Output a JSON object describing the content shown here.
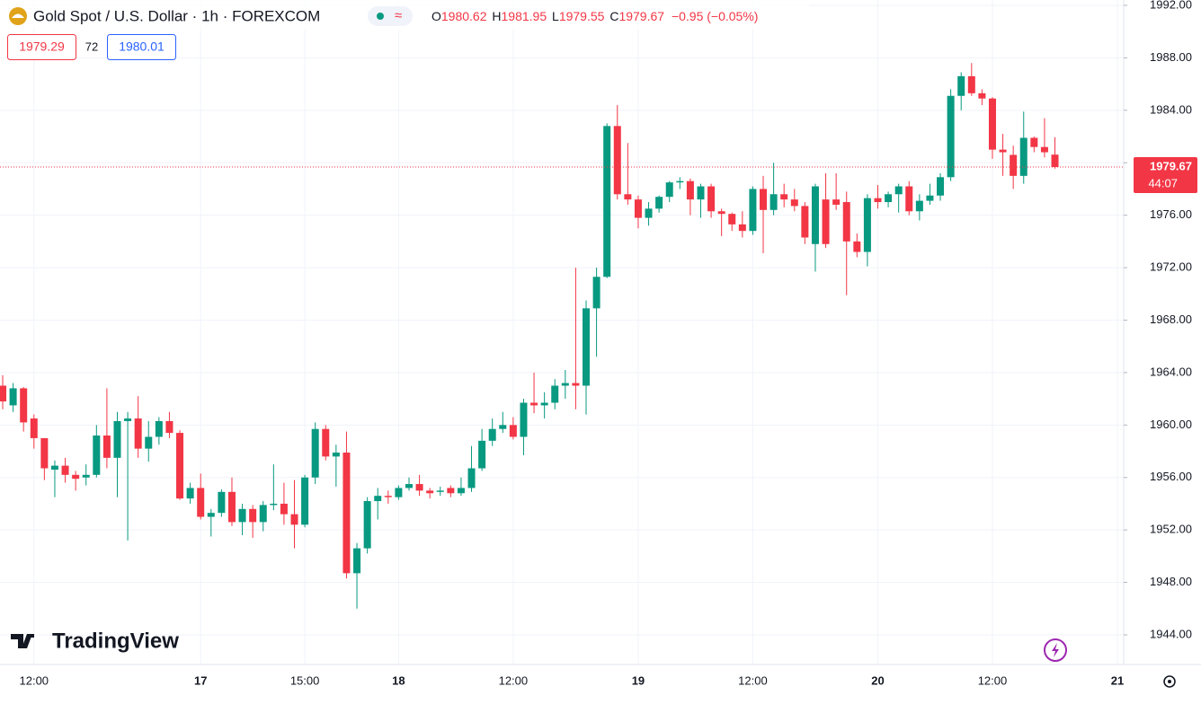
{
  "chart_data": {
    "type": "candlestick",
    "title": "Gold Spot / U.S. Dollar · 1h · FOREXCOM",
    "ohlc_labels": [
      "O",
      "H",
      "L",
      "C"
    ],
    "change": "−0.95 (−0.05%)",
    "bid": 1979.29,
    "spread": 72,
    "ask": 1980.01,
    "countdown": "44:07",
    "brand": "TradingView",
    "up_color": "#089981",
    "down_color": "#f23645",
    "open": [
      1963.0,
      1961.5,
      1962.8,
      1960.5,
      1959.0,
      1956.6,
      1956.9,
      1956.2,
      1956.0,
      1956.2,
      1959.2,
      1957.5,
      1960.3,
      1960.5,
      1958.2,
      1959.1,
      1960.3,
      1959.4,
      1954.4,
      1955.2,
      1953.0,
      1953.3,
      1954.9,
      1952.6,
      1953.6,
      1952.6,
      1953.9,
      1954.0,
      1953.2,
      1952.4,
      1956.0,
      1959.7,
      1957.6,
      1957.9,
      1948.7,
      1950.6,
      1954.2,
      1954.6,
      1954.5,
      1955.2,
      1955.5,
      1955.0,
      1954.9,
      1955.2,
      1954.8,
      1955.2,
      1956.7,
      1958.8,
      1959.7,
      1960.0,
      1959.1,
      1961.7,
      1961.5,
      1961.7,
      1963.0,
      1963.2,
      1963.0,
      1968.9,
      1971.3,
      1982.8,
      1977.6,
      1977.2,
      1975.8,
      1976.5,
      1977.4,
      1978.5,
      1978.6,
      1977.2,
      1978.2,
      1976.3,
      1976.1,
      1975.3,
      1974.8,
      1978.0,
      1976.4,
      1977.6,
      1977.2,
      1976.7,
      1973.8,
      1977.2,
      1977.2,
      1977.0,
      1974.0,
      1973.2,
      1977.3,
      1977.0,
      1977.6,
      1978.2,
      1976.3,
      1977.1,
      1977.5,
      1978.9,
      1985.1,
      1986.6,
      1985.3,
      1984.9,
      1981.0,
      1980.6,
      1979.0,
      1981.9,
      1981.2,
      1980.62
    ],
    "high": [
      1963.8,
      1963.2,
      1962.9,
      1960.8,
      1959.0,
      1957.3,
      1957.5,
      1956.5,
      1957.0,
      1960.0,
      1962.8,
      1961.0,
      1961.0,
      1962.2,
      1960.3,
      1960.6,
      1961.0,
      1959.6,
      1955.6,
      1956.3,
      1953.6,
      1955.1,
      1956.0,
      1954.0,
      1953.9,
      1954.2,
      1957.0,
      1955.6,
      1955.8,
      1956.2,
      1960.2,
      1960.0,
      1958.5,
      1959.5,
      1951.0,
      1954.5,
      1955.2,
      1955.0,
      1955.4,
      1956.0,
      1956.2,
      1955.2,
      1955.3,
      1955.4,
      1956.0,
      1958.4,
      1959.7,
      1960.5,
      1961.0,
      1960.6,
      1962.0,
      1964.0,
      1962.5,
      1963.5,
      1964.2,
      1972.0,
      1969.5,
      1972.0,
      1983.0,
      1984.4,
      1981.5,
      1977.5,
      1977.0,
      1977.5,
      1978.6,
      1978.9,
      1978.8,
      1978.4,
      1978.4,
      1976.5,
      1976.2,
      1976.3,
      1978.2,
      1979.0,
      1980.0,
      1978.4,
      1978.0,
      1977.0,
      1978.4,
      1979.2,
      1979.2,
      1977.8,
      1974.6,
      1977.6,
      1978.3,
      1977.8,
      1978.4,
      1978.6,
      1977.6,
      1978.4,
      1979.2,
      1985.6,
      1986.9,
      1987.6,
      1985.6,
      1985.0,
      1982.2,
      1981.3,
      1983.9,
      1982.0,
      1983.4,
      1981.95
    ],
    "low": [
      1961.2,
      1961.0,
      1959.5,
      1958.2,
      1955.8,
      1954.5,
      1955.6,
      1955.0,
      1955.4,
      1956.0,
      1956.7,
      1954.5,
      1951.2,
      1957.5,
      1957.2,
      1958.5,
      1959.0,
      1954.3,
      1954.0,
      1952.8,
      1951.5,
      1953.0,
      1952.3,
      1951.6,
      1951.4,
      1951.9,
      1953.5,
      1952.4,
      1950.6,
      1952.2,
      1955.5,
      1957.3,
      1955.3,
      1948.3,
      1946.0,
      1950.2,
      1952.8,
      1954.0,
      1954.3,
      1955.0,
      1954.6,
      1954.4,
      1954.6,
      1954.5,
      1954.6,
      1954.9,
      1956.5,
      1958.4,
      1959.4,
      1958.9,
      1957.7,
      1960.9,
      1960.5,
      1961.2,
      1962.0,
      1961.2,
      1960.8,
      1965.2,
      1971.2,
      1977.2,
      1976.8,
      1975.0,
      1975.2,
      1976.2,
      1977.0,
      1978.0,
      1976.0,
      1975.8,
      1975.8,
      1974.4,
      1974.8,
      1974.3,
      1974.5,
      1973.1,
      1976.0,
      1976.6,
      1976.3,
      1973.8,
      1971.7,
      1973.5,
      1976.4,
      1969.9,
      1972.8,
      1972.1,
      1976.5,
      1976.6,
      1976.2,
      1976.0,
      1975.6,
      1976.8,
      1977.1,
      1978.6,
      1984.0,
      1985.1,
      1984.4,
      1980.3,
      1979.0,
      1978.0,
      1978.4,
      1980.8,
      1980.4,
      1979.55
    ],
    "close": [
      1961.8,
      1962.8,
      1960.2,
      1959.0,
      1956.7,
      1956.9,
      1956.2,
      1955.9,
      1956.2,
      1959.2,
      1957.5,
      1960.3,
      1960.5,
      1958.2,
      1959.1,
      1960.3,
      1959.4,
      1954.4,
      1955.2,
      1953.0,
      1953.3,
      1954.9,
      1952.6,
      1953.6,
      1952.6,
      1953.9,
      1954.0,
      1953.2,
      1952.4,
      1956.0,
      1959.7,
      1957.6,
      1957.9,
      1948.7,
      1950.6,
      1954.2,
      1954.6,
      1954.5,
      1955.2,
      1955.5,
      1955.0,
      1954.8,
      1955.0,
      1954.8,
      1955.2,
      1956.7,
      1958.8,
      1959.7,
      1960.0,
      1959.1,
      1961.7,
      1961.5,
      1961.7,
      1963.0,
      1963.2,
      1963.0,
      1968.9,
      1971.3,
      1982.8,
      1977.6,
      1977.2,
      1975.8,
      1976.5,
      1977.4,
      1978.5,
      1978.6,
      1977.2,
      1978.2,
      1976.3,
      1976.1,
      1975.3,
      1974.8,
      1978.0,
      1976.4,
      1977.6,
      1977.2,
      1976.7,
      1974.3,
      1978.2,
      1973.8,
      1976.8,
      1974.0,
      1973.2,
      1977.3,
      1977.0,
      1977.6,
      1978.2,
      1976.3,
      1977.1,
      1977.5,
      1978.9,
      1985.1,
      1986.6,
      1985.3,
      1984.9,
      1981.0,
      1980.8,
      1979.0,
      1981.9,
      1981.2,
      1980.8,
      1979.67
    ],
    "xlim": [
      -0.26,
      107.6
    ],
    "xticks": [
      {
        "value": 3,
        "label": "12:00"
      },
      {
        "value": 19,
        "label": "17"
      },
      {
        "value": 29,
        "label": "15:00"
      },
      {
        "value": 38,
        "label": "18"
      },
      {
        "value": 49,
        "label": "12:00"
      },
      {
        "value": 61,
        "label": "19"
      },
      {
        "value": 72,
        "label": "12:00"
      },
      {
        "value": 84,
        "label": "20"
      },
      {
        "value": 95,
        "label": "12:00"
      },
      {
        "value": 107,
        "label": "21"
      }
    ],
    "ylim": [
      1941.74,
      1992.41
    ],
    "yticks": [
      {
        "value": 1944,
        "label": "1944.00"
      },
      {
        "value": 1948,
        "label": "1948.00"
      },
      {
        "value": 1952,
        "label": "1952.00"
      },
      {
        "value": 1956,
        "label": "1956.00"
      },
      {
        "value": 1960,
        "label": "1960.00"
      },
      {
        "value": 1964,
        "label": "1964.00"
      },
      {
        "value": 1968,
        "label": "1968.00"
      },
      {
        "value": 1972,
        "label": "1972.00"
      },
      {
        "value": 1976,
        "label": "1976.00"
      },
      {
        "value": 1980,
        "label": "1980.00"
      },
      {
        "value": 1984,
        "label": "1984.00"
      },
      {
        "value": 1988,
        "label": "1988.00"
      },
      {
        "value": 1992,
        "label": "1992.00"
      }
    ],
    "grid": true
  }
}
